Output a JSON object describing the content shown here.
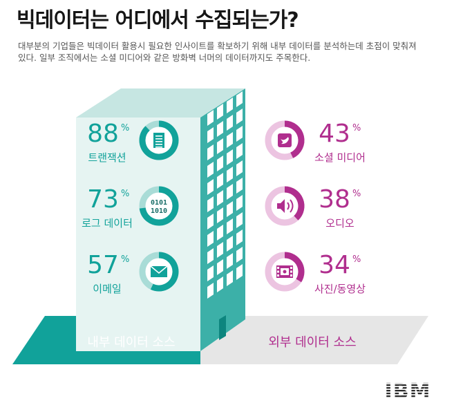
{
  "title": "빅데이터는 어디에서 수집되는가?",
  "subtitle": "대부분의 기업들은 빅데이터 활용시 필요한 인사이트를 확보하기 위해 내부 데이터를 분석하는데 초점이 맞춰져 있다. 일부 조직에서는 소셜 미디어와 같은 방화벽 너머의 데이터까지도 주목한다.",
  "colors": {
    "internal_teal": "#11a29a",
    "internal_light": "#a9dcd7",
    "building_front": "#e6f4f2",
    "building_side": "#3cb0a8",
    "external_magenta": "#b02e8e",
    "external_light": "#ecc4e1",
    "floor_gray": "#e6e6e6"
  },
  "logo": "IBM",
  "chart_data": {
    "type": "donut-infographic",
    "unit": "%",
    "groups": [
      {
        "label": "내부 데이터 소스",
        "items": [
          {
            "label": "트랜잭션",
            "value": 88,
            "icon": "document-icon"
          },
          {
            "label": "로그 데이터",
            "value": 73,
            "icon": "binary-icon",
            "icon_text": "0101 1010"
          },
          {
            "label": "이메일",
            "value": 57,
            "icon": "envelope-icon"
          }
        ]
      },
      {
        "label": "외부 데이터 소스",
        "items": [
          {
            "label": "소셜 미디어",
            "value": 43,
            "icon": "bird-icon"
          },
          {
            "label": "오디오",
            "value": 38,
            "icon": "speaker-icon"
          },
          {
            "label": "사진/동영상",
            "value": 34,
            "icon": "film-icon"
          }
        ]
      }
    ]
  }
}
